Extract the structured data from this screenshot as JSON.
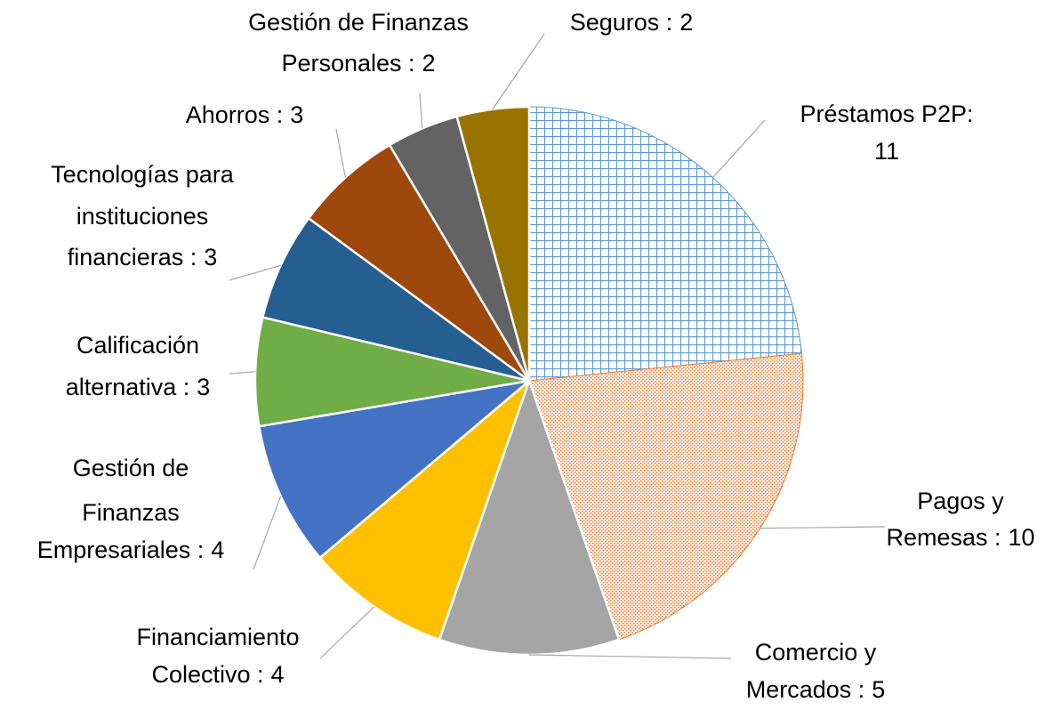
{
  "chart_data": {
    "type": "pie",
    "categories": [
      [
        "Préstamos P2P:"
      ],
      [
        "Pagos y",
        "Remesas   :"
      ],
      [
        "Comercio y",
        "Mercados  :"
      ],
      [
        "Financiamiento",
        "Colectivo  :"
      ],
      [
        "Gestión de",
        "Finanzas",
        "Empresariales  :"
      ],
      [
        "Calificación",
        "alternativa :"
      ],
      [
        "Tecnologías para",
        "instituciones",
        "financieras  :"
      ],
      [
        "Ahorros  :"
      ],
      [
        "Gestión de Finanzas",
        "Personales  :"
      ],
      [
        "Seguros :"
      ]
    ],
    "values": [
      11,
      10,
      5,
      4,
      4,
      3,
      3,
      3,
      2,
      2
    ],
    "colors": [
      "#5b9bd5",
      "#ed7d31",
      "#a5a5a5",
      "#ffc000",
      "#4472c4",
      "#70ad47",
      "#255e91",
      "#9e480e",
      "#636363",
      "#997300"
    ],
    "patterns": [
      "grid",
      "dots",
      null,
      null,
      null,
      null,
      null,
      null,
      null,
      null
    ]
  }
}
